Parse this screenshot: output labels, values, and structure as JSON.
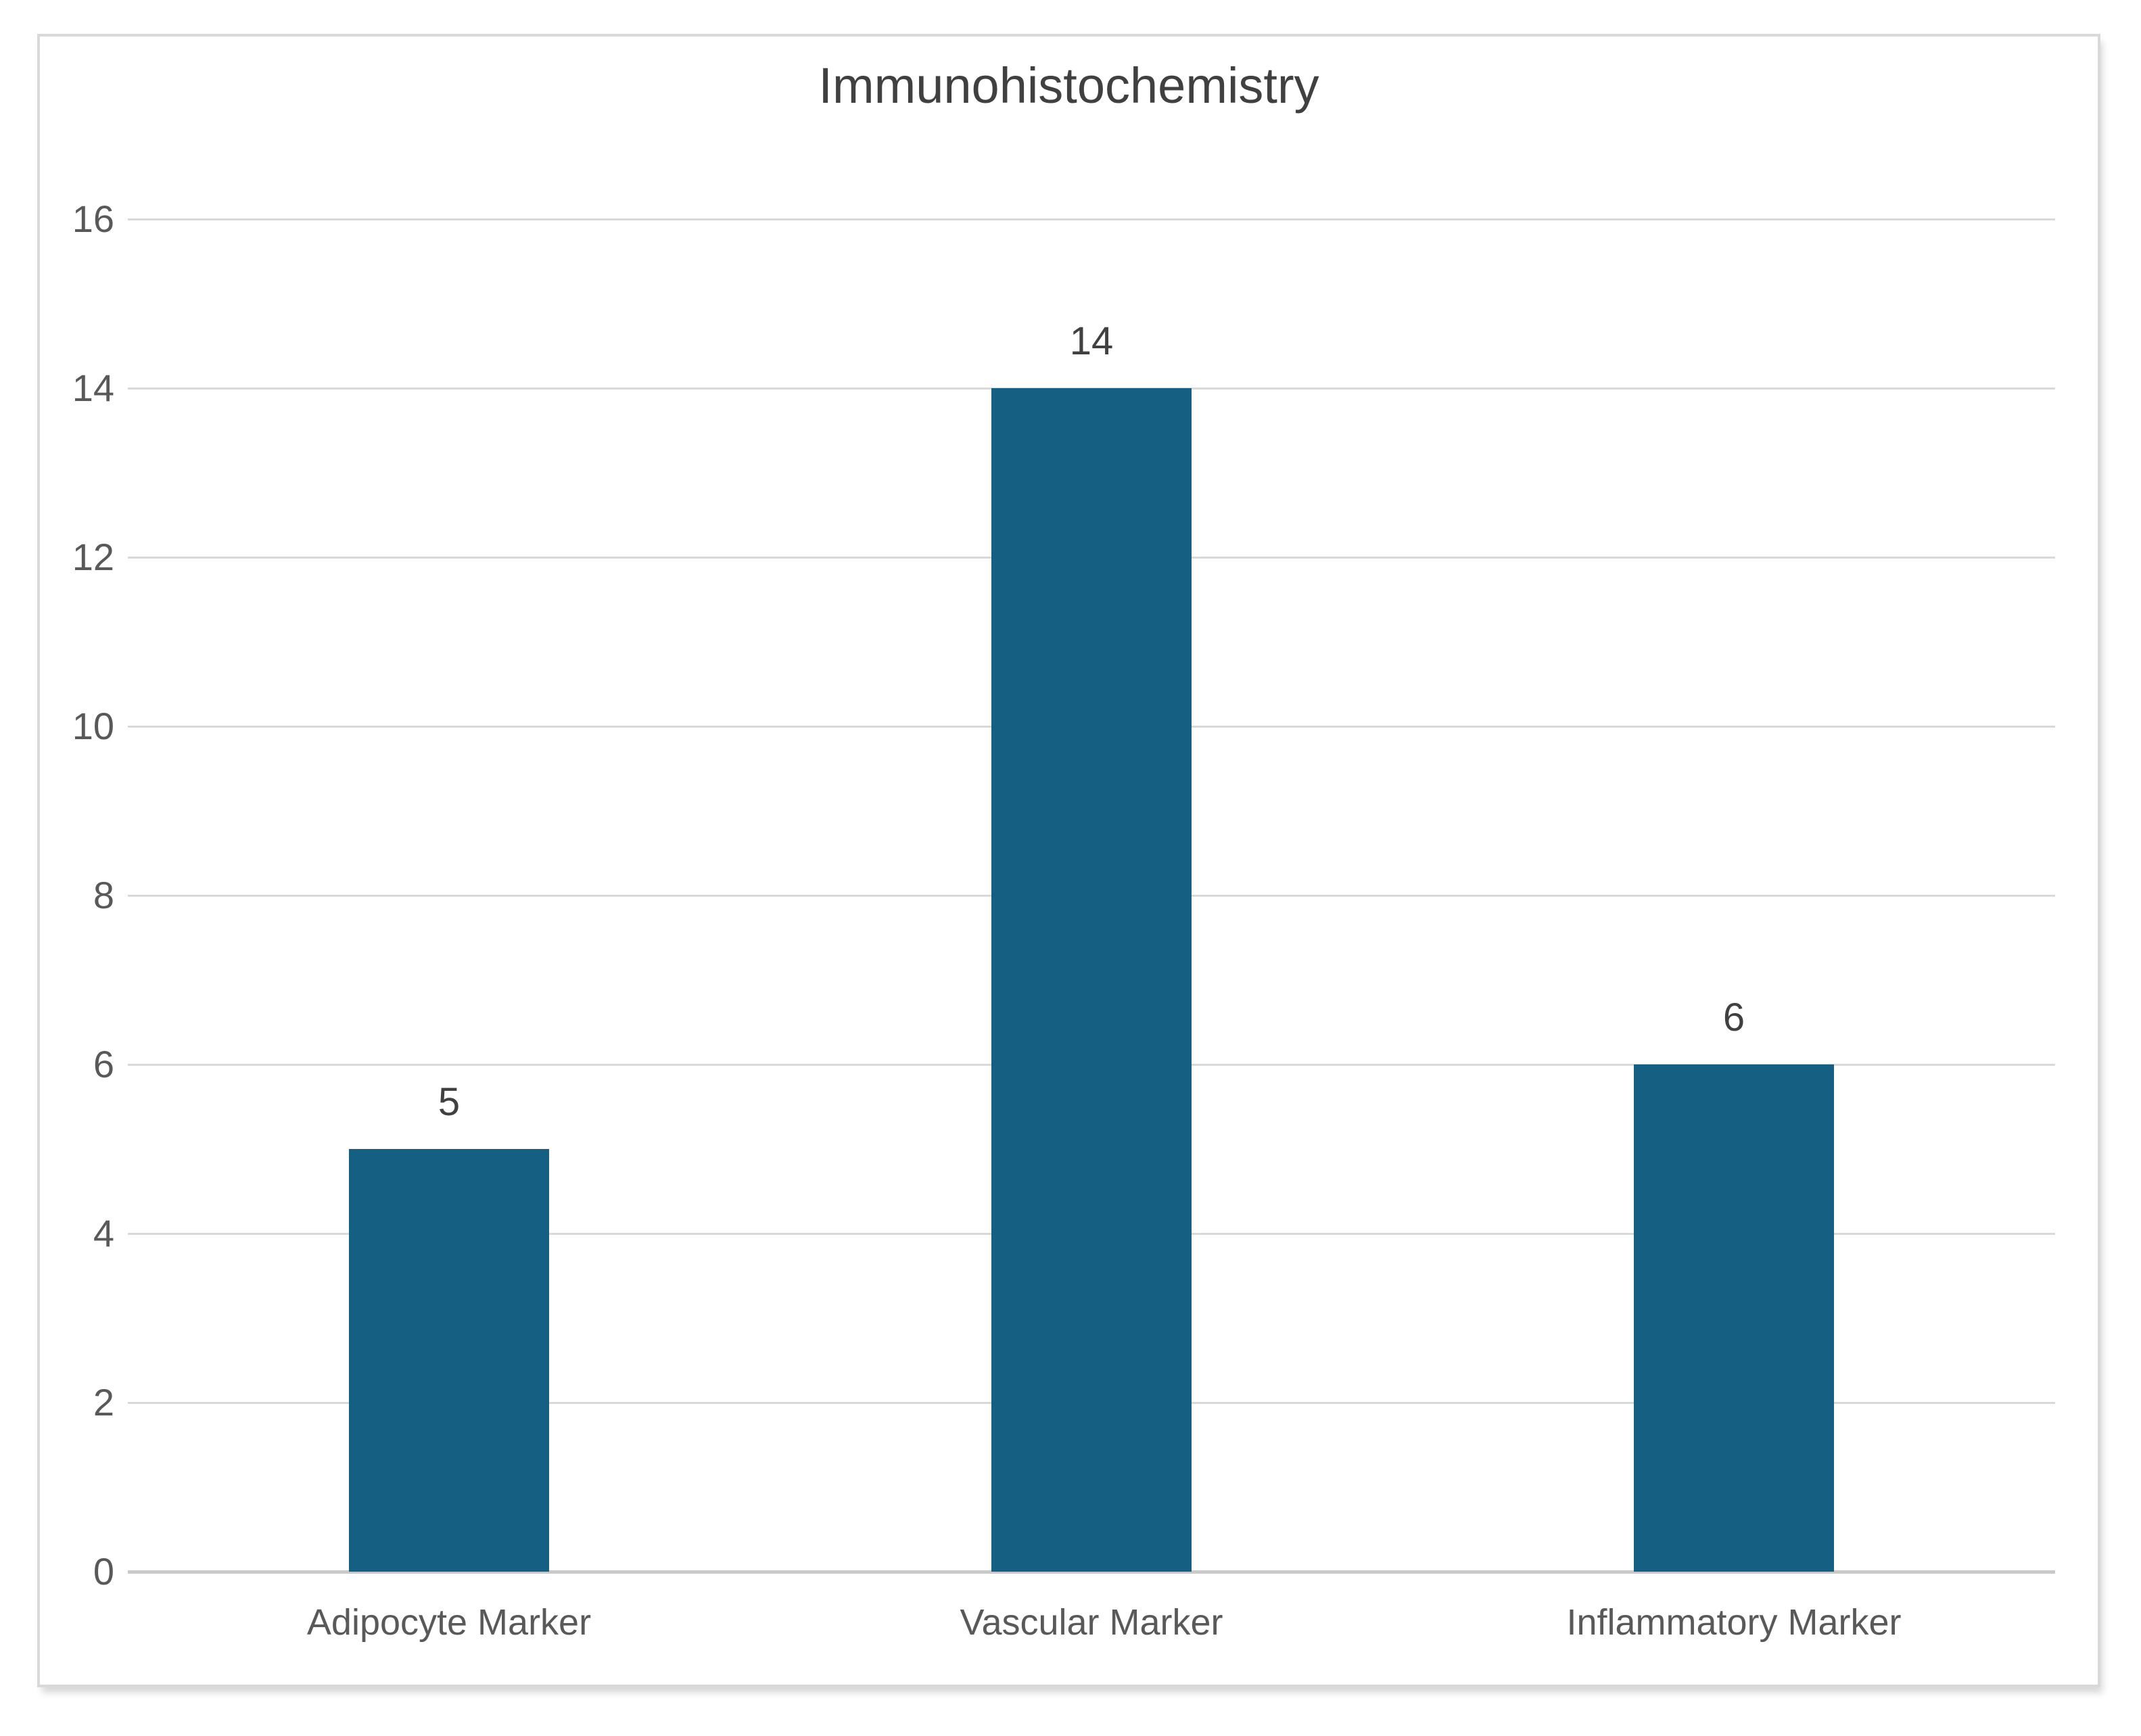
{
  "chart_data": {
    "type": "bar",
    "title": "Immunohistochemistry",
    "categories": [
      "Adipocyte Marker",
      "Vascular Marker",
      "Inflammatory Marker"
    ],
    "values": [
      5,
      14,
      6
    ],
    "data_labels": [
      "5",
      "14",
      "6"
    ],
    "xlabel": "",
    "ylabel": "",
    "ylim": [
      0,
      16
    ],
    "ytick_step": 2,
    "yticks": [
      0,
      2,
      4,
      6,
      8,
      10,
      12,
      14,
      16
    ],
    "grid": true,
    "legend": "none",
    "colors": {
      "bar_fill": "#156082",
      "gridline": "#d9d9d9",
      "axis_line": "#c9c9c9",
      "frame_border": "#d9d9d9",
      "title_text": "#404040",
      "data_label_text": "#404040",
      "axis_text": "#595959",
      "background": "#ffffff"
    }
  }
}
